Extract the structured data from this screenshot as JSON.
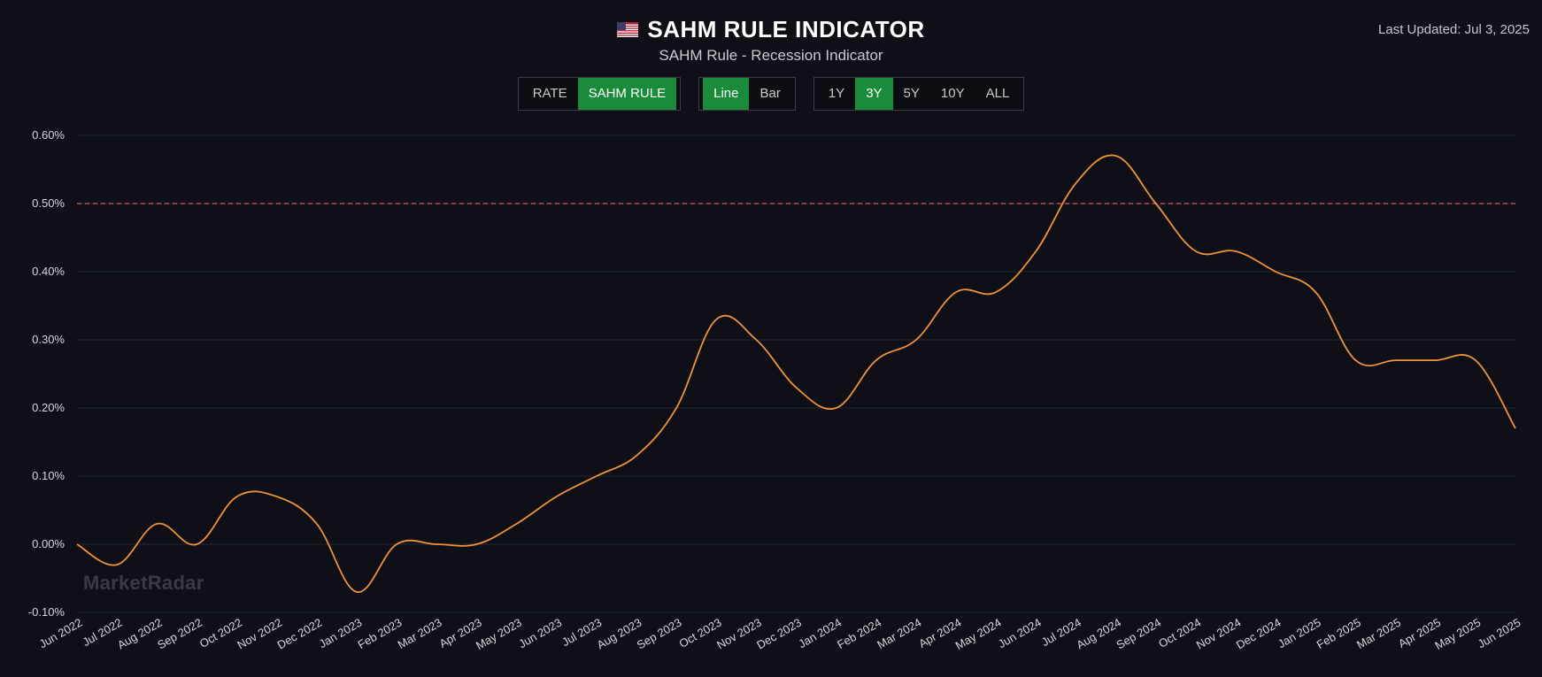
{
  "header": {
    "title": "SAHM RULE INDICATOR",
    "subtitle": "SAHM Rule - Recession Indicator",
    "last_updated": "Last Updated: Jul 3, 2025",
    "flag_icon": "us-flag-icon"
  },
  "controls": {
    "metric": [
      {
        "label": "RATE",
        "active": false
      },
      {
        "label": "SAHM RULE",
        "active": true
      }
    ],
    "chart_type": [
      {
        "label": "Line",
        "active": true
      },
      {
        "label": "Bar",
        "active": false
      }
    ],
    "range": [
      {
        "label": "1Y",
        "active": false
      },
      {
        "label": "3Y",
        "active": true
      },
      {
        "label": "5Y",
        "active": false
      },
      {
        "label": "10Y",
        "active": false
      },
      {
        "label": "ALL",
        "active": false
      }
    ]
  },
  "watermark": "MarketRadar",
  "colors": {
    "background": "#0f1017",
    "line": "#f0923a",
    "threshold": "#e05a5a",
    "grid": "#262731",
    "accent": "#1a8b3a"
  },
  "chart_data": {
    "type": "line",
    "title": "SAHM RULE INDICATOR",
    "categories": [
      "Jun 2022",
      "Jul 2022",
      "Aug 2022",
      "Sep 2022",
      "Oct 2022",
      "Nov 2022",
      "Dec 2022",
      "Jan 2023",
      "Feb 2023",
      "Mar 2023",
      "Apr 2023",
      "May 2023",
      "Jun 2023",
      "Jul 2023",
      "Aug 2023",
      "Sep 2023",
      "Oct 2023",
      "Nov 2023",
      "Dec 2023",
      "Jan 2024",
      "Feb 2024",
      "Mar 2024",
      "Apr 2024",
      "May 2024",
      "Jun 2024",
      "Jul 2024",
      "Aug 2024",
      "Sep 2024",
      "Oct 2024",
      "Nov 2024",
      "Dec 2024",
      "Jan 2025",
      "Feb 2025",
      "Mar 2025",
      "Apr 2025",
      "May 2025",
      "Jun 2025"
    ],
    "series": [
      {
        "name": "SAHM Rule",
        "values": [
          0.0,
          -0.03,
          0.03,
          0.0,
          0.07,
          0.07,
          0.03,
          -0.07,
          0.0,
          0.0,
          0.0,
          0.03,
          0.07,
          0.1,
          0.13,
          0.2,
          0.33,
          0.3,
          0.23,
          0.2,
          0.27,
          0.3,
          0.37,
          0.37,
          0.43,
          0.53,
          0.57,
          0.5,
          0.43,
          0.43,
          0.4,
          0.37,
          0.27,
          0.27,
          0.27,
          0.27,
          0.17
        ]
      }
    ],
    "threshold": {
      "value": 0.5,
      "style": "dashed"
    },
    "ylim": [
      -0.1,
      0.6
    ],
    "yticks": [
      -0.1,
      0.0,
      0.1,
      0.2,
      0.3,
      0.4,
      0.5,
      0.6
    ],
    "ytick_labels": [
      "-0.10%",
      "0.00%",
      "0.10%",
      "0.20%",
      "0.30%",
      "0.40%",
      "0.50%",
      "0.60%"
    ],
    "grid": true,
    "xlabel": "",
    "ylabel": ""
  }
}
